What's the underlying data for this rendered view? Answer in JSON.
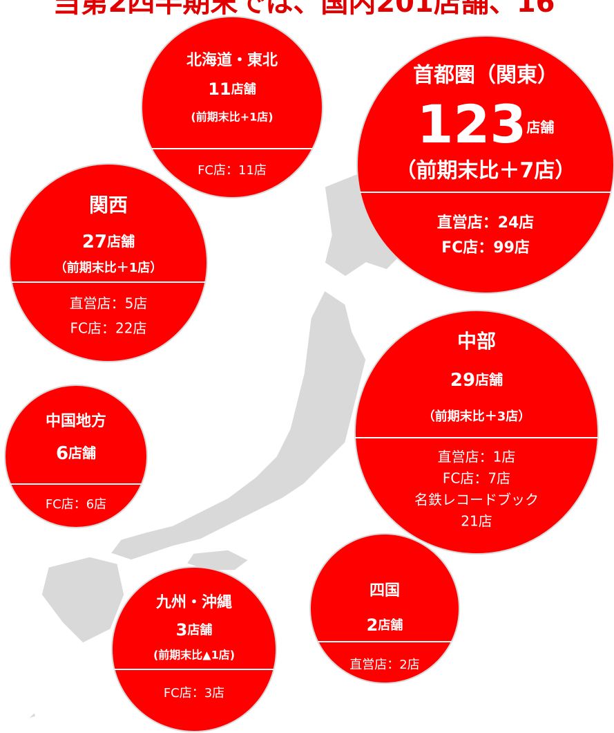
{
  "header": {
    "title": "当第2四半期末では、国内201店舗、16"
  },
  "regions": [
    {
      "name": "北海道・東北",
      "count": 11,
      "unit": "店舗",
      "change": "(前期末比+1店)",
      "details": [
        "FC店：11店"
      ]
    },
    {
      "name": "首都圏（関東）",
      "count": 123,
      "unit": "店舗",
      "change": "（前期末比＋7店）",
      "details": [
        "直営店：24店",
        "FC店：99店"
      ]
    },
    {
      "name": "関西",
      "count": 27,
      "unit": "店舗",
      "change": "（前期末比＋1店）",
      "details": [
        "直営店：5店",
        "FC店：22店"
      ]
    },
    {
      "name": "中部",
      "count": 29,
      "unit": "店舗",
      "change": "（前期末比＋3店）",
      "details": [
        "直営店：1店",
        "FC店：7店",
        "名鉄レコードブック",
        "21店"
      ]
    },
    {
      "name": "中国地方",
      "count": 6,
      "unit": "店舗",
      "details": [
        "FC店：6店"
      ]
    },
    {
      "name": "九州・沖縄",
      "count": 3,
      "unit": "店舗",
      "change": "(前期末比▲1店)",
      "details": [
        "FC店：3店"
      ]
    },
    {
      "name": "四国",
      "count": 2,
      "unit": "店舗",
      "details": [
        "直営店：2店"
      ]
    }
  ]
}
